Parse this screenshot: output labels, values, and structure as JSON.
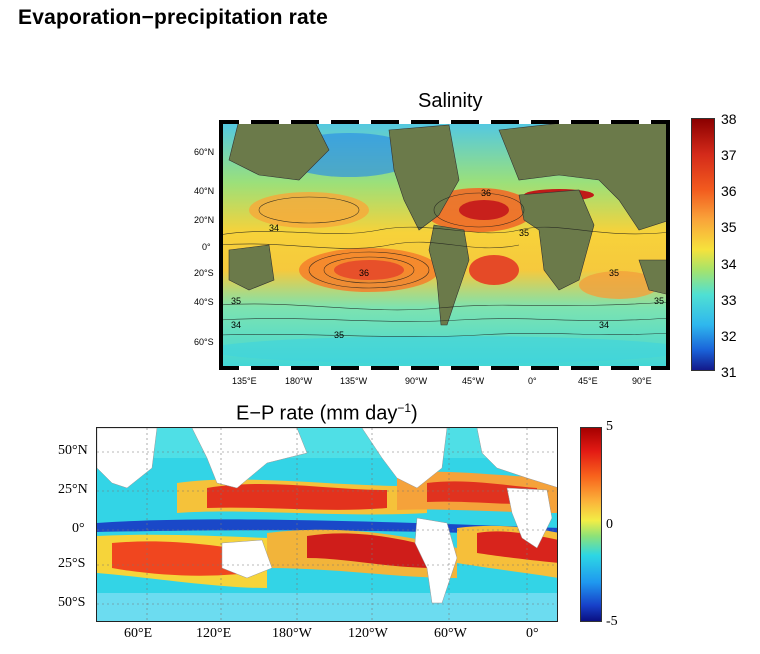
{
  "page": {
    "title": "Evaporation−precipitation rate"
  },
  "salinity": {
    "title": "Salinity",
    "colorbar_ticks": [
      "38",
      "37",
      "36",
      "35",
      "34",
      "33",
      "32",
      "31"
    ],
    "lat_labels": [
      "60°N",
      "40°N",
      "20°N",
      "0°",
      "20°S",
      "40°S",
      "60°S"
    ],
    "lon_labels": [
      "135°E",
      "180°W",
      "135°W",
      "90°W",
      "45°W",
      "0°",
      "45°E",
      "90°E"
    ],
    "contour_labels": [
      "34",
      "35",
      "36",
      "36",
      "35",
      "34",
      "35",
      "35",
      "34",
      "35"
    ]
  },
  "ep_rate": {
    "title_main": "E−P rate (mm day",
    "title_exp": "−1",
    "title_close": ")",
    "colorbar_ticks": [
      "5",
      "0",
      "-5"
    ],
    "lat_labels": [
      "50°N",
      "25°N",
      "0°",
      "25°S",
      "50°S"
    ],
    "lon_labels": [
      "60°E",
      "120°E",
      "180°W",
      "120°W",
      "60°W",
      "0°"
    ]
  }
}
